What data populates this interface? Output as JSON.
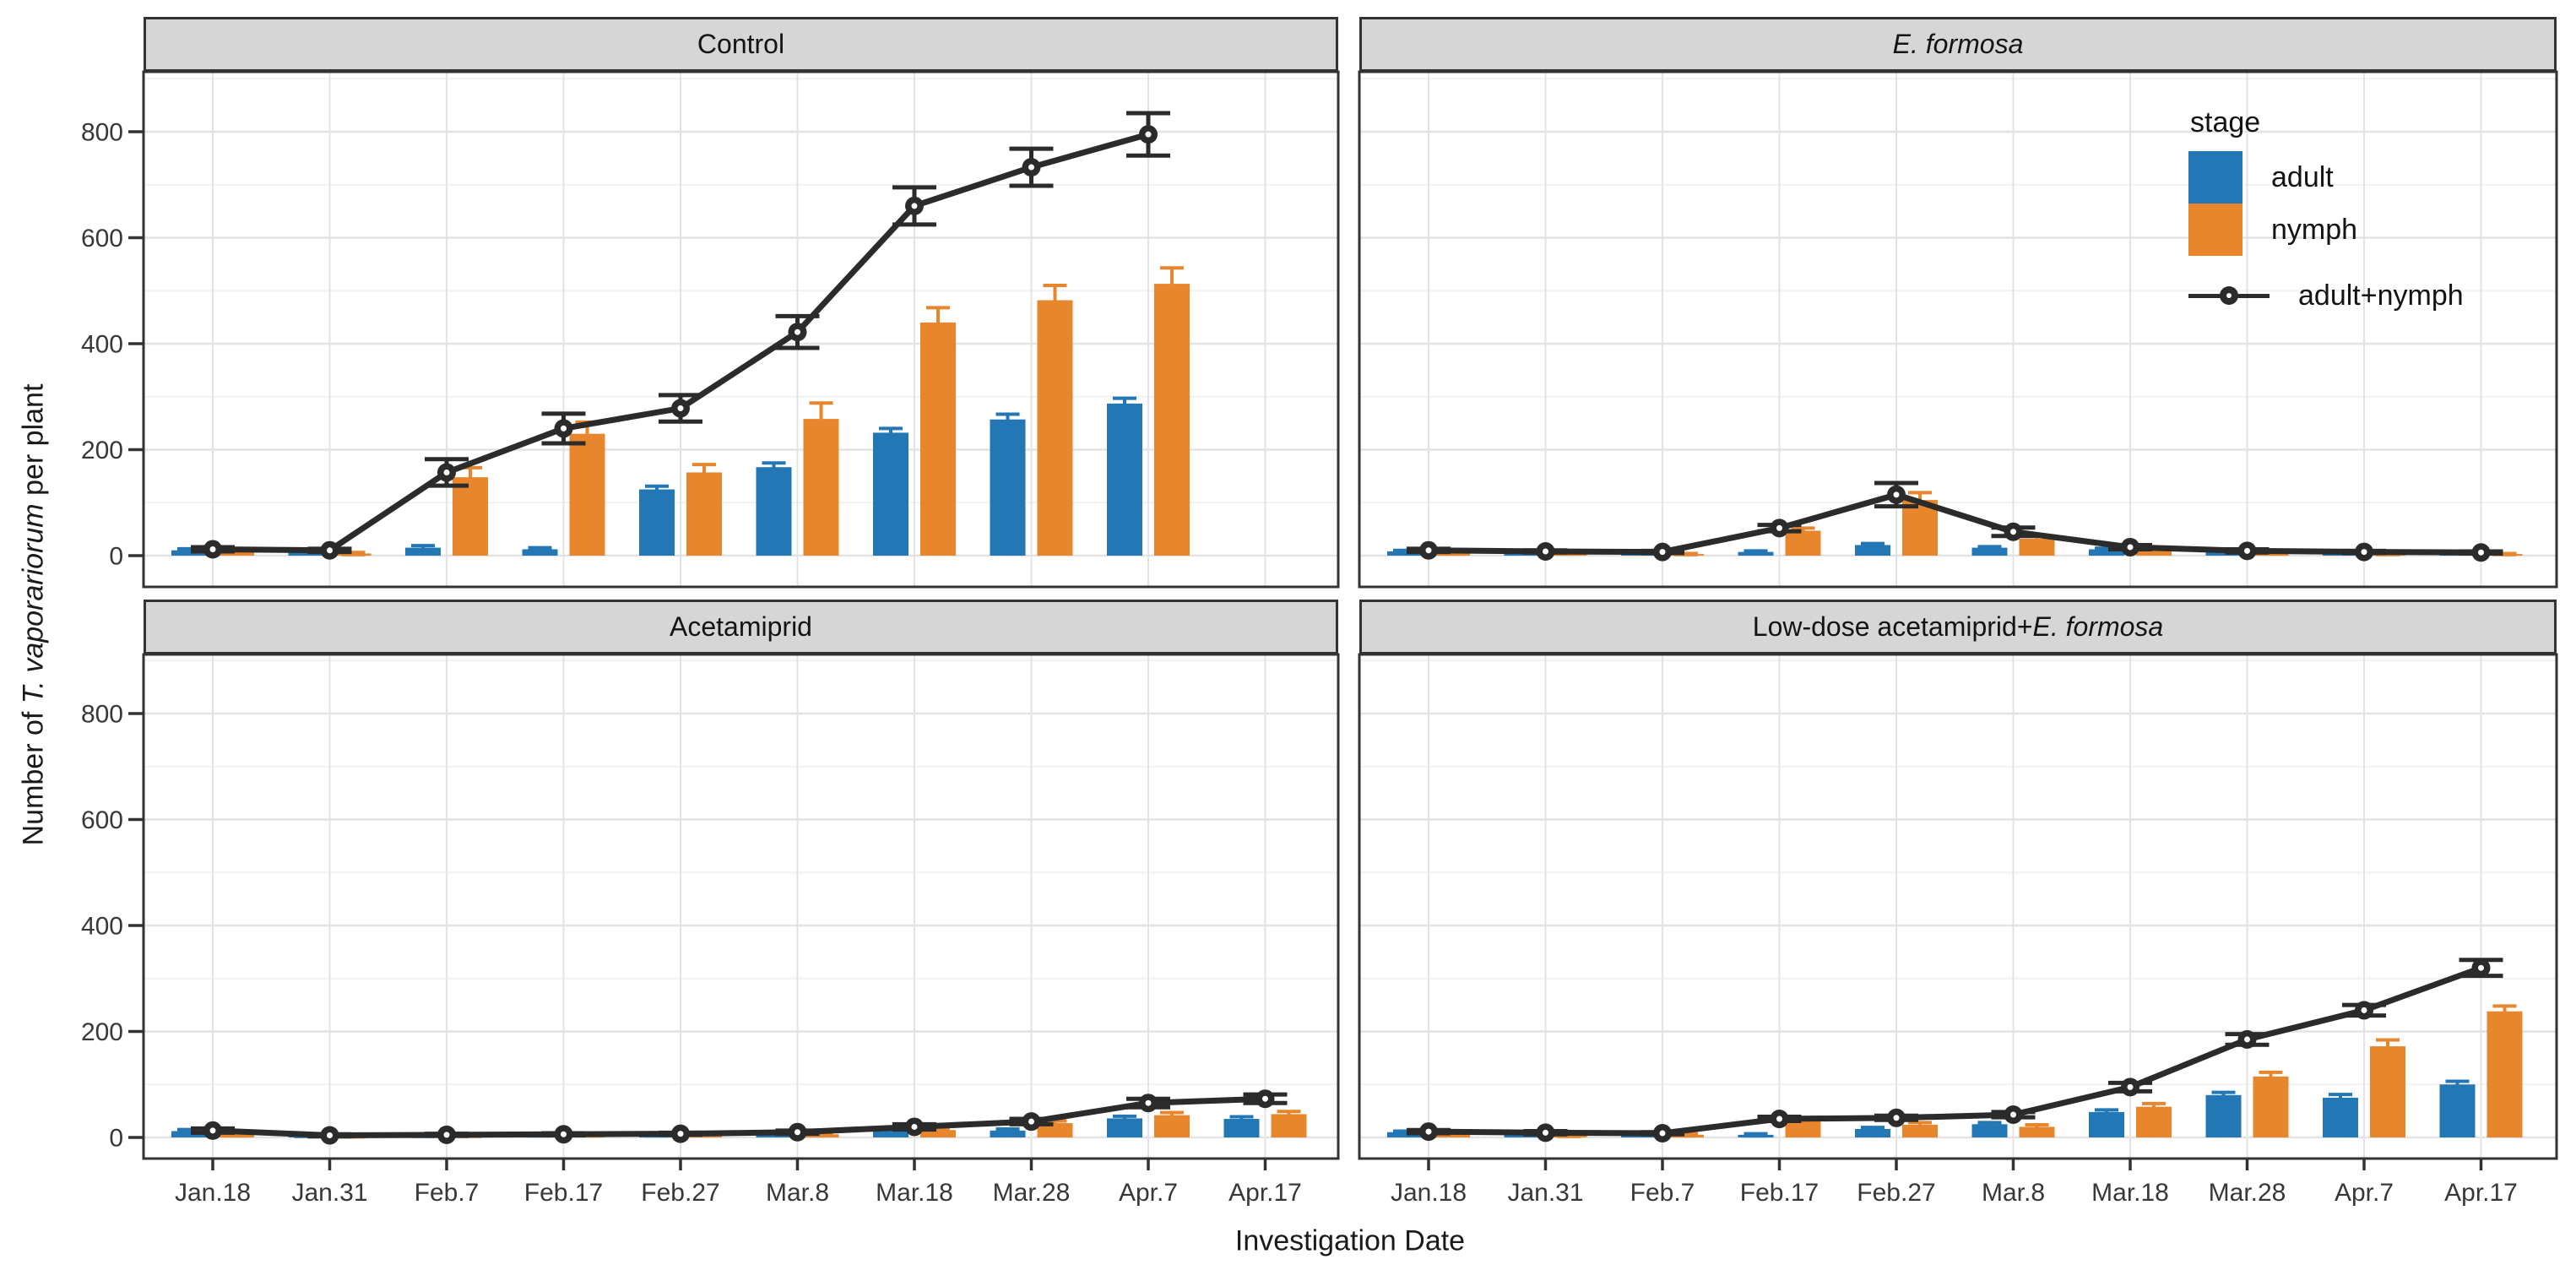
{
  "figure": {
    "ylabel_parts": [
      {
        "text": "Number of ",
        "italic": false
      },
      {
        "text": "T. vaporariorum",
        "italic": true
      },
      {
        "text": " per plant",
        "italic": false
      }
    ],
    "xlabel": "Investigation Date",
    "legend": {
      "title": "stage",
      "items": [
        {
          "label": "adult",
          "type": "swatch",
          "color_key": "adult"
        },
        {
          "label": "nymph",
          "type": "swatch",
          "color_key": "nymph"
        },
        {
          "label": "adult+nymph",
          "type": "line"
        }
      ]
    }
  },
  "chart_data": {
    "type": "bar",
    "subtype": "faceted dodged bars (adult, nymph) + adult+nymph line with error bars",
    "categories": [
      "Jan.18",
      "Jan.31",
      "Feb.7",
      "Feb.17",
      "Feb.27",
      "Mar.8",
      "Mar.18",
      "Mar.28",
      "Apr.7",
      "Apr.17"
    ],
    "xlabel": "Investigation Date",
    "ylabel": "Number of T. vaporariorum per plant",
    "y_ticks": [
      0,
      200,
      400,
      600,
      800
    ],
    "ylim": [
      -60,
      915
    ],
    "grid": true,
    "legend_position": "inside top-right panel",
    "colors": {
      "adult": "#2277b4",
      "nymph": "#e8862d",
      "line": "#2b2b2b",
      "strip_bg": "#d6d6d6",
      "grid_major": "#e3e3e3",
      "grid_minor": "#f1f1f1",
      "border": "#333333"
    },
    "facets": [
      {
        "id": "control",
        "row": 0,
        "col": 0,
        "title_parts": [
          {
            "text": "Control",
            "italic": false
          }
        ],
        "adult": [
          10,
          9,
          15,
          12,
          125,
          167,
          232,
          257,
          287,
          null
        ],
        "adult_err": [
          3,
          3,
          4,
          3,
          6,
          8,
          8,
          10,
          10,
          null
        ],
        "nymph": [
          8,
          4,
          148,
          230,
          157,
          258,
          440,
          482,
          513,
          null
        ],
        "nymph_err": [
          3,
          2,
          18,
          22,
          15,
          30,
          28,
          28,
          30,
          null
        ],
        "total": [
          12,
          10,
          157,
          240,
          278,
          422,
          660,
          733,
          795,
          null
        ],
        "total_err": [
          4,
          3,
          25,
          28,
          25,
          30,
          35,
          35,
          40,
          null
        ]
      },
      {
        "id": "e-formosa",
        "row": 0,
        "col": 1,
        "title_parts": [
          {
            "text": "E. formosa",
            "italic": true
          }
        ],
        "adult": [
          8,
          7,
          6,
          7,
          20,
          15,
          12,
          8,
          6,
          5
        ],
        "adult_err": [
          2,
          2,
          1,
          2,
          3,
          2,
          2,
          1,
          1,
          1
        ],
        "nymph": [
          5,
          4,
          3,
          47,
          105,
          32,
          9,
          5,
          3,
          3
        ],
        "nymph_err": [
          2,
          1,
          1,
          5,
          14,
          5,
          3,
          2,
          1,
          1
        ],
        "total": [
          10,
          8,
          7,
          52,
          115,
          45,
          16,
          9,
          7,
          6
        ],
        "total_err": [
          3,
          2,
          2,
          6,
          22,
          8,
          4,
          3,
          2,
          2
        ]
      },
      {
        "id": "acetamiprid",
        "row": 1,
        "col": 0,
        "title_parts": [
          {
            "text": "Acetamiprid",
            "italic": false
          }
        ],
        "adult": [
          12,
          3,
          3,
          4,
          4,
          6,
          12,
          13,
          36,
          35
        ],
        "adult_err": [
          3,
          1,
          1,
          1,
          1,
          2,
          3,
          3,
          4,
          4
        ],
        "nymph": [
          5,
          2,
          3,
          4,
          5,
          6,
          14,
          27,
          42,
          44
        ],
        "nymph_err": [
          2,
          1,
          1,
          1,
          1,
          2,
          3,
          4,
          5,
          5
        ],
        "total": [
          13,
          4,
          5,
          6,
          7,
          10,
          20,
          30,
          65,
          73
        ],
        "total_err": [
          4,
          2,
          2,
          2,
          2,
          3,
          5,
          5,
          8,
          8
        ]
      },
      {
        "id": "lowdose-e-formosa",
        "row": 1,
        "col": 1,
        "title_parts": [
          {
            "text": "Low-dose acetamiprid+",
            "italic": false
          },
          {
            "text": "E. formosa",
            "italic": true
          }
        ],
        "adult": [
          10,
          8,
          8,
          5,
          16,
          25,
          48,
          80,
          75,
          100
        ],
        "adult_err": [
          2,
          2,
          2,
          2,
          3,
          3,
          4,
          5,
          6,
          6
        ],
        "nymph": [
          6,
          4,
          5,
          33,
          24,
          20,
          58,
          115,
          172,
          238
        ],
        "nymph_err": [
          2,
          2,
          2,
          4,
          4,
          4,
          6,
          8,
          12,
          10
        ],
        "total": [
          11,
          9,
          8,
          35,
          37,
          43,
          95,
          185,
          240,
          320
        ],
        "total_err": [
          3,
          3,
          2,
          4,
          4,
          5,
          8,
          10,
          10,
          15
        ]
      }
    ]
  }
}
